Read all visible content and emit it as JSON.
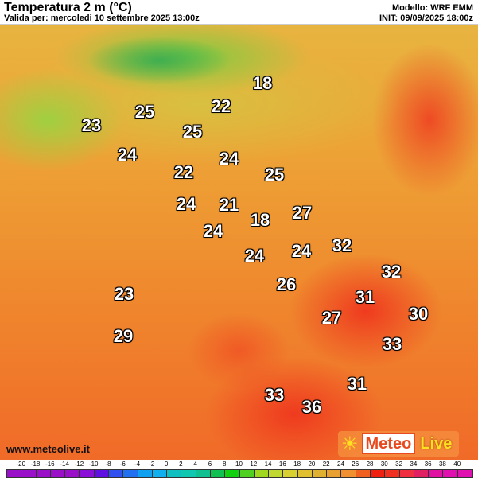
{
  "header": {
    "title": "Temperatura 2 m (°C)",
    "valid": "Valida per: mercoledi 10 settembre 2025 13:00z",
    "model": "Modello: WRF EMM",
    "init": "INIT: 09/09/2025 18:00z"
  },
  "map": {
    "labels": [
      "18",
      "25",
      "22",
      "23",
      "25",
      "24",
      "24",
      "22",
      "25",
      "24",
      "21",
      "18",
      "27",
      "24",
      "32",
      "24",
      "24",
      "32",
      "26",
      "31",
      "23",
      "30",
      "27",
      "29",
      "33",
      "31",
      "33",
      "36"
    ]
  },
  "footer": {
    "website": "www.meteolive.it",
    "logo_part1": "Meteo",
    "logo_part2": "Live"
  },
  "legend": {
    "ticks": [
      "-20",
      "-18",
      "-16",
      "-14",
      "-12",
      "-10",
      "-8",
      "-6",
      "-4",
      "-2",
      "0",
      "2",
      "4",
      "6",
      "8",
      "10",
      "12",
      "14",
      "16",
      "18",
      "20",
      "22",
      "24",
      "26",
      "28",
      "30",
      "32",
      "34",
      "36",
      "38",
      "40"
    ],
    "colors": [
      "#9a10c8",
      "#9a10c8",
      "#9a10c8",
      "#9a10c8",
      "#9a10c8",
      "#8a10d8",
      "#6010e0",
      "#3050f0",
      "#2070f0",
      "#10a0f0",
      "#10b0f0",
      "#10c0c0",
      "#10c8b0",
      "#10c090",
      "#10c050",
      "#10d010",
      "#50d020",
      "#a0d820",
      "#c0d830",
      "#d8d030",
      "#e0c030",
      "#e0b030",
      "#e8a030",
      "#f09030",
      "#f06020",
      "#f02010",
      "#f03020",
      "#f03040",
      "#e02060",
      "#e010a0",
      "#e010b0",
      "#e010b0"
    ]
  }
}
